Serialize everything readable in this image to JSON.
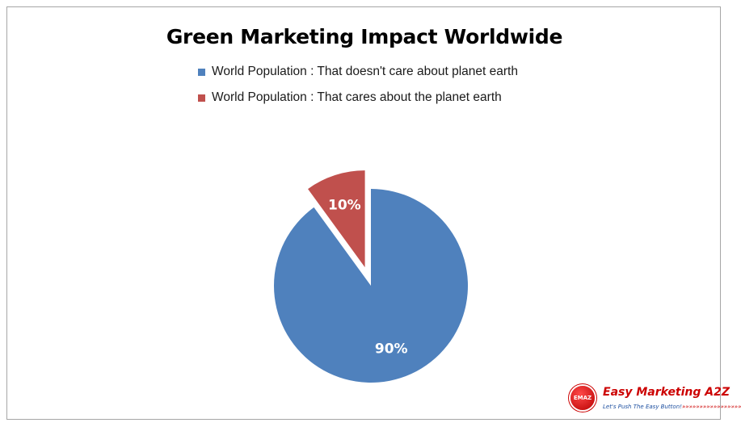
{
  "chart_data": {
    "type": "pie",
    "title": "Green Marketing Impact Worldwide",
    "legend_position": "top",
    "slices": [
      {
        "name": "World Population : That doesn't care about planet earth",
        "value": 90,
        "label": "90%",
        "color": "#4f81bd",
        "exploded": false
      },
      {
        "name": "World Population : That cares about the planet earth",
        "value": 10,
        "label": "10%",
        "color": "#c0504d",
        "exploded": true
      }
    ]
  },
  "logo": {
    "badge_text": "EMAZ",
    "name": "Easy Marketing A2Z",
    "tagline": "Let's Push The Easy Button!",
    "tagline_arrows": "»»»»»»»»»»»»»»»»»"
  }
}
